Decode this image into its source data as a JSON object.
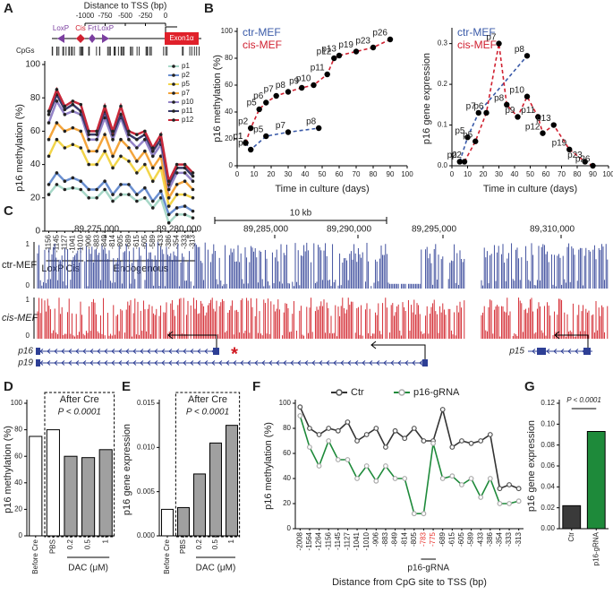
{
  "panel_labels": [
    "A",
    "B",
    "C",
    "D",
    "E",
    "F",
    "G"
  ],
  "diagram": {
    "axis_title": "Distance to TSS (bp)",
    "ticks": [
      -1000,
      -750,
      -500,
      -250,
      0
    ],
    "elements": [
      {
        "label": "LoxP",
        "color": "#7b3fa0"
      },
      {
        "label": "Cis",
        "color": "#d02030"
      },
      {
        "label": "Frt",
        "color": "#7b3fa0"
      },
      {
        "label": "LoxP",
        "color": "#7b3fa0"
      }
    ],
    "exon": "Exon1α",
    "cpg_label": "CpGs"
  },
  "chart_data": [
    {
      "type": "line",
      "ylabel": "p16 methylation (%)",
      "categories": [
        -1156,
        -1145,
        -1127,
        -1041,
        -1010,
        -906,
        -883,
        -849,
        -814,
        -805,
        -689,
        -615,
        -605,
        -589,
        -433,
        -386,
        -354,
        -333,
        -313
      ],
      "group_labels": [
        "LoxP",
        "Cis",
        "Endogenous"
      ],
      "ylim": [
        0,
        100
      ],
      "yticks": [
        0,
        20,
        40,
        60,
        80,
        100
      ],
      "legend": "upper right",
      "marker_color": "#222",
      "series": [
        {
          "name": "p1",
          "color": "#a8d8c8",
          "values": [
            22,
            28,
            25,
            26,
            25,
            20,
            20,
            25,
            18,
            22,
            22,
            18,
            20,
            14,
            20,
            5,
            10,
            10,
            8
          ]
        },
        {
          "name": "p2",
          "color": "#6a8fd0",
          "values": [
            28,
            35,
            30,
            32,
            30,
            25,
            25,
            30,
            22,
            28,
            28,
            22,
            26,
            18,
            24,
            10,
            14,
            15,
            12
          ]
        },
        {
          "name": "p5",
          "color": "#f2d54a",
          "values": [
            45,
            55,
            50,
            52,
            50,
            40,
            40,
            48,
            38,
            45,
            42,
            35,
            40,
            30,
            38,
            15,
            22,
            22,
            20
          ]
        },
        {
          "name": "p7",
          "color": "#f4a53c",
          "values": [
            55,
            65,
            60,
            62,
            60,
            48,
            48,
            58,
            45,
            55,
            50,
            42,
            48,
            38,
            45,
            20,
            28,
            30,
            25
          ]
        },
        {
          "name": "p10",
          "color": "#9484c8",
          "values": [
            65,
            78,
            70,
            72,
            70,
            55,
            55,
            68,
            55,
            68,
            55,
            50,
            55,
            45,
            52,
            25,
            35,
            35,
            30
          ]
        },
        {
          "name": "p11",
          "color": "#3a3a6a",
          "values": [
            70,
            82,
            73,
            76,
            72,
            58,
            58,
            72,
            58,
            70,
            58,
            55,
            58,
            48,
            55,
            28,
            38,
            38,
            33
          ]
        },
        {
          "name": "p12",
          "color": "#c8283a",
          "values": [
            72,
            85,
            75,
            78,
            76,
            60,
            60,
            75,
            60,
            75,
            60,
            58,
            60,
            50,
            58,
            30,
            40,
            40,
            35
          ]
        }
      ]
    },
    {
      "type": "line",
      "xlabel": "Time in culture (days)",
      "ylabel": "p16 methylation (%)",
      "xlim": [
        0,
        100
      ],
      "xticks": [
        0,
        10,
        20,
        30,
        40,
        50,
        60,
        70,
        80,
        90,
        100
      ],
      "ylim": [
        0,
        100
      ],
      "yticks": [
        0,
        20,
        40,
        60,
        80,
        100
      ],
      "legend": "upper left",
      "dashed": true,
      "marker_color": "#000",
      "series": [
        {
          "name": "ctr-MEF",
          "color": "#3a5aa8",
          "x": [
            5,
            8,
            17,
            30,
            48
          ],
          "values": [
            17,
            12,
            22,
            25,
            28
          ],
          "point_labels": [
            "p1",
            "p2",
            "p5",
            "p7",
            "p8"
          ]
        },
        {
          "name": "cis-MEF",
          "color": "#d02030",
          "x": [
            5,
            8,
            13,
            17,
            23,
            30,
            38,
            45,
            53,
            57,
            60,
            70,
            80,
            90
          ],
          "values": [
            17,
            28,
            42,
            47,
            52,
            55,
            58,
            60,
            68,
            80,
            82,
            85,
            88,
            94
          ],
          "point_labels": [
            "p1",
            "p2",
            "p5",
            "p6",
            "p7",
            "p8",
            "p9",
            "p10",
            "p11",
            "p12",
            "p13",
            "p19",
            "p23",
            "p26"
          ]
        }
      ]
    },
    {
      "type": "line",
      "xlabel": "Time in culture (days)",
      "ylabel": "p16 gene expression",
      "xlim": [
        0,
        100
      ],
      "xticks": [
        0,
        10,
        20,
        30,
        40,
        50,
        60,
        70,
        80,
        90,
        100
      ],
      "ylim": [
        0,
        0.33
      ],
      "yticks": [
        {
          "value": 0,
          "label": "0.0"
        },
        0.1,
        0.2,
        0.3
      ],
      "legend": "upper left",
      "dashed": true,
      "marker_color": "#000",
      "series": [
        {
          "name": "ctr-MEF",
          "color": "#3a5aa8",
          "x": [
            5,
            10,
            17,
            48
          ],
          "values": [
            0.01,
            0.07,
            0.13,
            0.27
          ],
          "point_labels": [
            "p2",
            "p5",
            "p7",
            "p8"
          ]
        },
        {
          "name": "cis-MEF",
          "color": "#d02030",
          "x": [
            8,
            15,
            22,
            30,
            35,
            42,
            48,
            55,
            58,
            65,
            75,
            85,
            90
          ],
          "values": [
            0.01,
            0.06,
            0.13,
            0.3,
            0.15,
            0.12,
            0.17,
            0.12,
            0.08,
            0.1,
            0.04,
            0.01,
            0
          ],
          "point_labels": [
            "p2",
            "p5",
            "p6",
            "p7",
            "p8",
            "p9",
            "p10",
            "p11",
            "p12",
            "p13",
            "p19",
            "p23",
            "p26"
          ]
        }
      ]
    },
    {
      "type": "bar",
      "ylabel": "p16 methylation (%)",
      "categories": [
        "Before Cre",
        "PBS",
        "0.2",
        "0.5",
        "1"
      ],
      "values": [
        75,
        80,
        60,
        59,
        65
      ],
      "colors": [
        "#ffffff",
        "#ffffff",
        "#a0a0a0",
        "#a0a0a0",
        "#a0a0a0"
      ],
      "ylim": [
        0,
        100
      ],
      "yticks": [
        0,
        20,
        40,
        60,
        80,
        100
      ],
      "bracket_label": "After Cre",
      "annotation": "P < 0.0001",
      "group_label": "DAC (μM)"
    },
    {
      "type": "bar",
      "ylabel": "p16 gene expression",
      "categories": [
        "Before Cre",
        "PBS",
        "0.2",
        "0.5",
        "1"
      ],
      "values": [
        0.003,
        0.0032,
        0.007,
        0.0105,
        0.0125
      ],
      "colors": [
        "#ffffff",
        "#a0a0a0",
        "#a0a0a0",
        "#a0a0a0",
        "#a0a0a0"
      ],
      "ylim": [
        0,
        0.015
      ],
      "yticks": [
        {
          "value": 0,
          "label": "0.000"
        },
        0.005,
        {
          "value": 0.01,
          "label": "0.010"
        },
        0.015
      ],
      "bracket_label": "After Cre",
      "annotation": "P < 0.0001",
      "group_label": "DAC (μM)"
    },
    {
      "type": "line",
      "xlabel": "Distance from CpG site to TSS (bp)",
      "ylabel": "p16 methylation (%)",
      "categories": [
        -2008,
        -1564,
        -1264,
        -1156,
        -1145,
        -1127,
        -1041,
        -1010,
        -906,
        -883,
        -849,
        -814,
        -805,
        -783,
        -775,
        -689,
        -615,
        -605,
        -589,
        -433,
        -386,
        -354,
        -333,
        -313
      ],
      "ylim": [
        0,
        100
      ],
      "yticks": [
        0,
        20,
        40,
        60,
        80,
        100
      ],
      "legend": "top",
      "annotation": "p16-gRNA",
      "highlight_color": "#e8302a",
      "series": [
        {
          "name": "Ctr",
          "color": "#333333",
          "marker_color": "#555555",
          "values": [
            97,
            80,
            75,
            80,
            78,
            85,
            70,
            75,
            80,
            65,
            78,
            72,
            80,
            70,
            70,
            95,
            65,
            70,
            68,
            70,
            75,
            32,
            35,
            32
          ]
        },
        {
          "name": "p16-gRNA",
          "color": "#1e8a3a",
          "marker_color": "#aaaaaa",
          "values": [
            90,
            65,
            50,
            70,
            55,
            55,
            40,
            50,
            38,
            50,
            40,
            40,
            12,
            12,
            68,
            40,
            42,
            35,
            40,
            25,
            40,
            20,
            20,
            22
          ]
        }
      ]
    },
    {
      "type": "bar",
      "ylabel": "p16 gene expression",
      "categories": [
        "Ctr",
        "p16-gRNA"
      ],
      "values": [
        0.022,
        0.093
      ],
      "colors": [
        "#3a3a3a",
        "#1e8a3a"
      ],
      "ylim": [
        0,
        0.12
      ],
      "yticks": [
        {
          "value": 0,
          "label": "0.00"
        },
        0.02,
        0.04,
        0.06,
        0.08,
        {
          "value": 0.1,
          "label": "0.10"
        },
        0.12
      ],
      "annotation": "P < 0.0001"
    }
  ],
  "genome_browser": {
    "scale_label": "10 kb",
    "coordinates": [
      "89,275,000",
      "89,280,000",
      "89,285,000",
      "89,290,000",
      "89,295,000",
      "89,310,000"
    ],
    "tracks": [
      {
        "name": "ctr-MEF",
        "color": "#2e3f95",
        "scale": [
          1,
          0
        ]
      },
      {
        "name": "cis-MEF",
        "color": "#d01820",
        "scale": [
          1,
          0
        ]
      }
    ],
    "genes": [
      "p16",
      "p19",
      "p15"
    ],
    "mark": "*"
  }
}
